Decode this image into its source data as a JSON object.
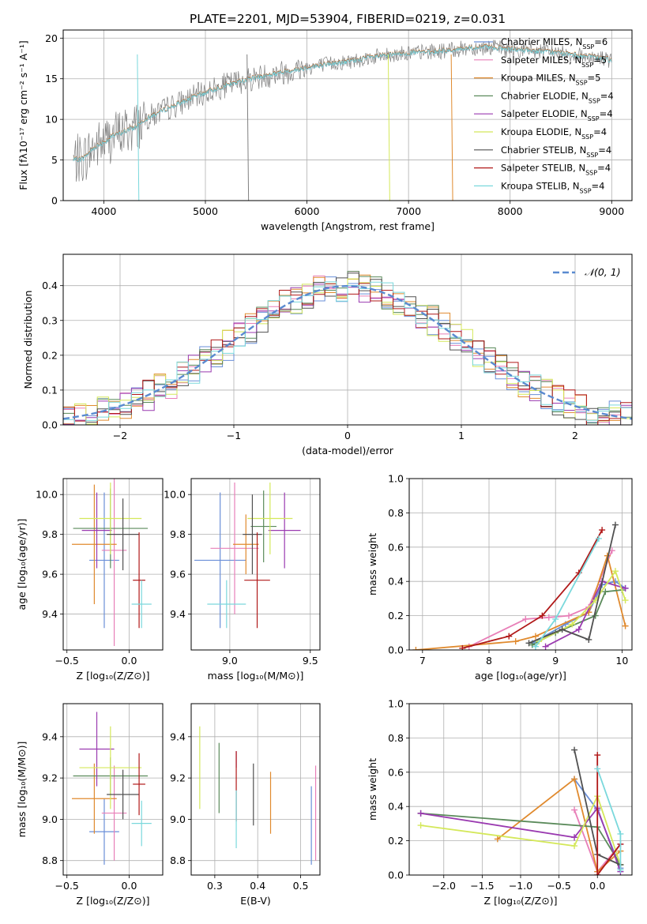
{
  "figure_title": "PLATE=2201, MJD=53904, FIBERID=0219, z=0.031",
  "colors": {
    "Chabrier MILES": "#6a8fd8",
    "Salpeter MILES": "#e87fb8",
    "Kroupa MILES": "#e08a2e",
    "Chabrier ELODIE": "#5a8a5a",
    "Salpeter ELODIE": "#9a3ab0",
    "Kroupa ELODIE": "#d4e85a",
    "Chabrier STELIB": "#505050",
    "Salpeter STELIB": "#b01818",
    "Kroupa STELIB": "#7ad8dc",
    "data": "#808080",
    "gaussian": "#5a8ad0"
  },
  "chart_data": [
    {
      "id": "spectrum",
      "type": "line",
      "xlabel": "wavelength [Angstrom, rest frame]",
      "ylabel": "Flux [fλ10⁻¹⁷ erg cm⁻² s⁻¹ A⁻¹]",
      "xlim": [
        3600,
        9200
      ],
      "ylim": [
        0,
        21
      ],
      "xticks": [
        "4000",
        "5000",
        "6000",
        "7000",
        "8000",
        "9000"
      ],
      "yticks": [
        "0",
        "5",
        "10",
        "15",
        "20"
      ],
      "legend": [
        "Chabrier MILES, N_SSP=6",
        "Salpeter MILES, N_SSP=5",
        "Kroupa MILES, N_SSP=5",
        "Chabrier ELODIE, N_SSP=4",
        "Salpeter ELODIE, N_SSP=4",
        "Kroupa ELODIE, N_SSP=4",
        "Chabrier STELIB, N_SSP=4",
        "Salpeter STELIB, N_SSP=4",
        "Kroupa STELIB, N_SSP=4"
      ],
      "legend_loc": "right",
      "continuum_x": [
        3700,
        3800,
        3900,
        4000,
        4100,
        4200,
        4300,
        4400,
        4600,
        4800,
        5000,
        5200,
        5400,
        5600,
        5800,
        6000,
        6200,
        6400,
        6600,
        6800,
        7000,
        7200,
        7400,
        7600,
        7800,
        8000,
        8200,
        8400,
        8600,
        8800,
        9000
      ],
      "continuum_y": [
        5.0,
        5.2,
        6.5,
        7.2,
        8.0,
        8.5,
        9.0,
        10.0,
        11.2,
        12.3,
        13.3,
        14.2,
        14.9,
        15.4,
        15.9,
        16.4,
        16.8,
        17.1,
        17.6,
        17.9,
        18.2,
        18.3,
        18.5,
        18.8,
        18.9,
        18.6,
        18.5,
        18.3,
        18.0,
        17.7,
        17.3
      ]
    },
    {
      "id": "residuals",
      "type": "bar",
      "xlabel": "(data-model)/error",
      "ylabel": "Normed distribution",
      "xlim": [
        -2.5,
        2.5
      ],
      "ylim": [
        0,
        0.49
      ],
      "xticks": [
        "−2",
        "−1",
        "0",
        "1",
        "2"
      ],
      "yticks": [
        "0.0",
        "0.1",
        "0.2",
        "0.3",
        "0.4"
      ],
      "legend": "𝒩(0, 1)",
      "legend_loc": "upper right",
      "bin_width": 0.1
    },
    {
      "id": "age_vs_Z",
      "type": "scatter",
      "xlabel": "Z [log₁₀(Z/Z⊙)]",
      "ylabel": "age  [log₁₀(age/yr)]",
      "xlim": [
        -0.53,
        0.27
      ],
      "ylim": [
        9.22,
        10.08
      ],
      "xticks": [
        "−0.5",
        "0.0"
      ],
      "yticks": [
        "9.4",
        "9.6",
        "9.8",
        "10.0"
      ],
      "points": [
        {
          "x": -0.2,
          "y": 9.67,
          "xerr": 0.12,
          "yerr": 0.34
        },
        {
          "x": -0.12,
          "y": 9.72,
          "xerr": 0.1,
          "yerr": 0.48
        },
        {
          "x": -0.28,
          "y": 9.75,
          "xerr": 0.18,
          "yerr": 0.3
        },
        {
          "x": -0.15,
          "y": 9.83,
          "xerr": 0.3,
          "yerr": 0.2
        },
        {
          "x": -0.26,
          "y": 9.82,
          "xerr": 0.12,
          "yerr": 0.19
        },
        {
          "x": -0.15,
          "y": 9.88,
          "xerr": 0.25,
          "yerr": 0.18
        },
        {
          "x": -0.05,
          "y": 9.8,
          "xerr": 0.13,
          "yerr": 0.18
        },
        {
          "x": 0.08,
          "y": 9.57,
          "xerr": 0.05,
          "yerr": 0.24
        },
        {
          "x": 0.1,
          "y": 9.45,
          "xerr": 0.08,
          "yerr": 0.12
        }
      ]
    },
    {
      "id": "age_vs_mass",
      "type": "scatter",
      "xlabel": "mass [log₁₀(M/M⊙)]",
      "ylabel": "",
      "xlim": [
        8.76,
        9.56
      ],
      "ylim": [
        9.22,
        10.08
      ],
      "xticks": [
        "9.0",
        "9.5"
      ],
      "yticks": [
        "9.4",
        "9.6",
        "9.8",
        "10.0"
      ],
      "points": [
        {
          "x": 8.94,
          "y": 9.67,
          "xerr": 0.16,
          "yerr": 0.34
        },
        {
          "x": 9.03,
          "y": 9.73,
          "xerr": 0.15,
          "yerr": 0.33
        },
        {
          "x": 9.1,
          "y": 9.75,
          "xerr": 0.08,
          "yerr": 0.15
        },
        {
          "x": 9.21,
          "y": 9.84,
          "xerr": 0.08,
          "yerr": 0.18
        },
        {
          "x": 9.34,
          "y": 9.82,
          "xerr": 0.1,
          "yerr": 0.19
        },
        {
          "x": 9.25,
          "y": 9.88,
          "xerr": 0.14,
          "yerr": 0.18
        },
        {
          "x": 9.14,
          "y": 9.8,
          "xerr": 0.06,
          "yerr": 0.2
        },
        {
          "x": 9.17,
          "y": 9.57,
          "xerr": 0.08,
          "yerr": 0.24
        },
        {
          "x": 8.98,
          "y": 9.45,
          "xerr": 0.12,
          "yerr": 0.12
        }
      ]
    },
    {
      "id": "massweight_vs_age",
      "type": "line",
      "xlabel": "age  [log₁₀(age/yr)]",
      "ylabel": "mass weight",
      "xlim": [
        6.8,
        10.15
      ],
      "ylim": [
        0,
        1.0
      ],
      "xticks": [
        "7",
        "8",
        "9",
        "10"
      ],
      "yticks": [
        "0.0",
        "0.2",
        "0.4",
        "0.6",
        "0.8",
        "1.0"
      ],
      "series": [
        {
          "x": [
            8.65,
            9.15,
            9.5,
            9.7,
            9.9,
            10.05
          ],
          "y": [
            0.04,
            0.15,
            0.22,
            0.38,
            0.4,
            0.36
          ]
        },
        {
          "x": [
            7.7,
            8.55,
            8.9,
            9.2,
            9.5,
            9.85
          ],
          "y": [
            0.02,
            0.18,
            0.19,
            0.2,
            0.25,
            0.58
          ]
        },
        {
          "x": [
            6.9,
            8.4,
            8.7,
            9.5,
            9.78,
            10.05
          ],
          "y": [
            0.0,
            0.05,
            0.08,
            0.22,
            0.55,
            0.14
          ]
        },
        {
          "x": [
            8.65,
            9.0,
            9.6,
            9.75,
            10.0
          ],
          "y": [
            0.03,
            0.1,
            0.2,
            0.34,
            0.35
          ]
        },
        {
          "x": [
            8.85,
            9.35,
            9.7,
            10.05
          ],
          "y": [
            0.02,
            0.12,
            0.4,
            0.36
          ]
        },
        {
          "x": [
            8.75,
            9.25,
            9.6,
            9.9,
            10.05
          ],
          "y": [
            0.05,
            0.15,
            0.29,
            0.46,
            0.29
          ]
        },
        {
          "x": [
            8.6,
            9.1,
            9.5,
            9.9
          ],
          "y": [
            0.04,
            0.12,
            0.06,
            0.73
          ]
        },
        {
          "x": [
            7.6,
            8.3,
            8.8,
            9.35,
            9.7
          ],
          "y": [
            0.01,
            0.08,
            0.2,
            0.45,
            0.7
          ]
        },
        {
          "x": [
            8.7,
            9.0,
            9.65
          ],
          "y": [
            0.02,
            0.18,
            0.65
          ]
        }
      ]
    },
    {
      "id": "mass_vs_Z",
      "type": "scatter",
      "xlabel": "Z [log₁₀(Z/Z⊙)]",
      "ylabel": "mass [log₁₀(M/M⊙)]",
      "xlim": [
        -0.53,
        0.27
      ],
      "ylim": [
        8.73,
        9.56
      ],
      "xticks": [
        "−0.5",
        "0.0"
      ],
      "yticks": [
        "8.8",
        "9.0",
        "9.2",
        "9.4"
      ],
      "points": [
        {
          "x": -0.2,
          "y": 8.94,
          "xerr": 0.12,
          "yerr": 0.16
        },
        {
          "x": -0.12,
          "y": 9.03,
          "xerr": 0.1,
          "yerr": 0.23
        },
        {
          "x": -0.28,
          "y": 9.1,
          "xerr": 0.18,
          "yerr": 0.17
        },
        {
          "x": -0.15,
          "y": 9.21,
          "xerr": 0.3,
          "yerr": 0.09
        },
        {
          "x": -0.26,
          "y": 9.34,
          "xerr": 0.14,
          "yerr": 0.18
        },
        {
          "x": -0.15,
          "y": 9.25,
          "xerr": 0.25,
          "yerr": 0.2
        },
        {
          "x": -0.05,
          "y": 9.12,
          "xerr": 0.13,
          "yerr": 0.12
        },
        {
          "x": 0.08,
          "y": 9.17,
          "xerr": 0.05,
          "yerr": 0.15
        },
        {
          "x": 0.1,
          "y": 8.98,
          "xerr": 0.08,
          "yerr": 0.11
        }
      ]
    },
    {
      "id": "mass_vs_ebv",
      "type": "scatter",
      "xlabel": "E(B-V)",
      "ylabel": "",
      "xlim": [
        0.245,
        0.545
      ],
      "ylim": [
        8.73,
        9.56
      ],
      "xticks": [
        "0.3",
        "0.4",
        "0.5"
      ],
      "yticks": [
        "8.8",
        "9.0",
        "9.2",
        "9.4"
      ],
      "points": [
        {
          "x": 0.525,
          "y": 8.97,
          "yerr": 0.19
        },
        {
          "x": 0.535,
          "y": 9.03,
          "yerr": 0.23
        },
        {
          "x": 0.43,
          "y": 9.08,
          "yerr": 0.15
        },
        {
          "x": 0.31,
          "y": 9.2,
          "yerr": 0.17
        },
        {
          "x": 0.35,
          "y": 9.29,
          "yerr": 0.04
        },
        {
          "x": 0.265,
          "y": 9.25,
          "yerr": 0.2
        },
        {
          "x": 0.39,
          "y": 9.12,
          "yerr": 0.15
        },
        {
          "x": 0.35,
          "y": 9.16,
          "yerr": 0.17
        },
        {
          "x": 0.35,
          "y": 9.0,
          "yerr": 0.14
        }
      ]
    },
    {
      "id": "massweight_vs_Z",
      "type": "line",
      "xlabel": "Z [log₁₀(Z/Z⊙)]",
      "ylabel": "mass weight",
      "xlim": [
        -2.45,
        0.45
      ],
      "ylim": [
        0,
        1.0
      ],
      "xticks": [
        "−2.0",
        "−1.5",
        "−1.0",
        "−0.5",
        "0.0"
      ],
      "yticks": [
        "0.0",
        "0.2",
        "0.4",
        "0.6",
        "0.8",
        "1.0"
      ],
      "series": [
        {
          "x": [
            -0.3,
            0.0,
            0.3
          ],
          "y": [
            0.56,
            0.38,
            0.04
          ]
        },
        {
          "x": [
            -0.3,
            0.0,
            0.3
          ],
          "y": [
            0.38,
            0.02,
            0.18
          ]
        },
        {
          "x": [
            -1.3,
            -0.3,
            0.0,
            0.3
          ],
          "y": [
            0.21,
            0.56,
            0.02,
            0.14
          ]
        },
        {
          "x": [
            -2.3,
            0.0,
            0.3
          ],
          "y": [
            0.36,
            0.28,
            0.06
          ]
        },
        {
          "x": [
            -2.3,
            -0.3,
            0.0,
            0.3
          ],
          "y": [
            0.36,
            0.22,
            0.39,
            0.02
          ]
        },
        {
          "x": [
            -2.3,
            -0.3,
            0.0,
            0.3
          ],
          "y": [
            0.29,
            0.17,
            0.46,
            0.06
          ]
        },
        {
          "x": [
            -0.3,
            0.0,
            0.3
          ],
          "y": [
            0.73,
            0.12,
            0.06
          ]
        },
        {
          "x": [
            0.0,
            0.0,
            0.3
          ],
          "y": [
            0.7,
            0.0,
            0.18
          ]
        },
        {
          "x": [
            0.0,
            0.3,
            0.3
          ],
          "y": [
            0.62,
            0.24,
            0.03
          ]
        }
      ]
    }
  ]
}
